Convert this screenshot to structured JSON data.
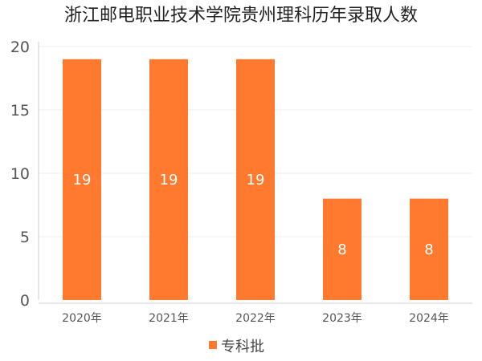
{
  "chart_data": {
    "type": "bar",
    "title": "浙江邮电职业技术学院贵州理科历年录取人数",
    "categories": [
      "2020年",
      "2021年",
      "2022年",
      "2023年",
      "2024年"
    ],
    "series": [
      {
        "name": "专科批",
        "values": [
          19,
          19,
          19,
          8,
          8
        ],
        "color": "#ff7a2f"
      }
    ],
    "ylim": [
      0,
      20
    ],
    "yticks": [
      0,
      5,
      10,
      15,
      20
    ],
    "xlabel": "",
    "ylabel": "",
    "grid": true,
    "legend": "bottom-center",
    "data_labels": true
  }
}
